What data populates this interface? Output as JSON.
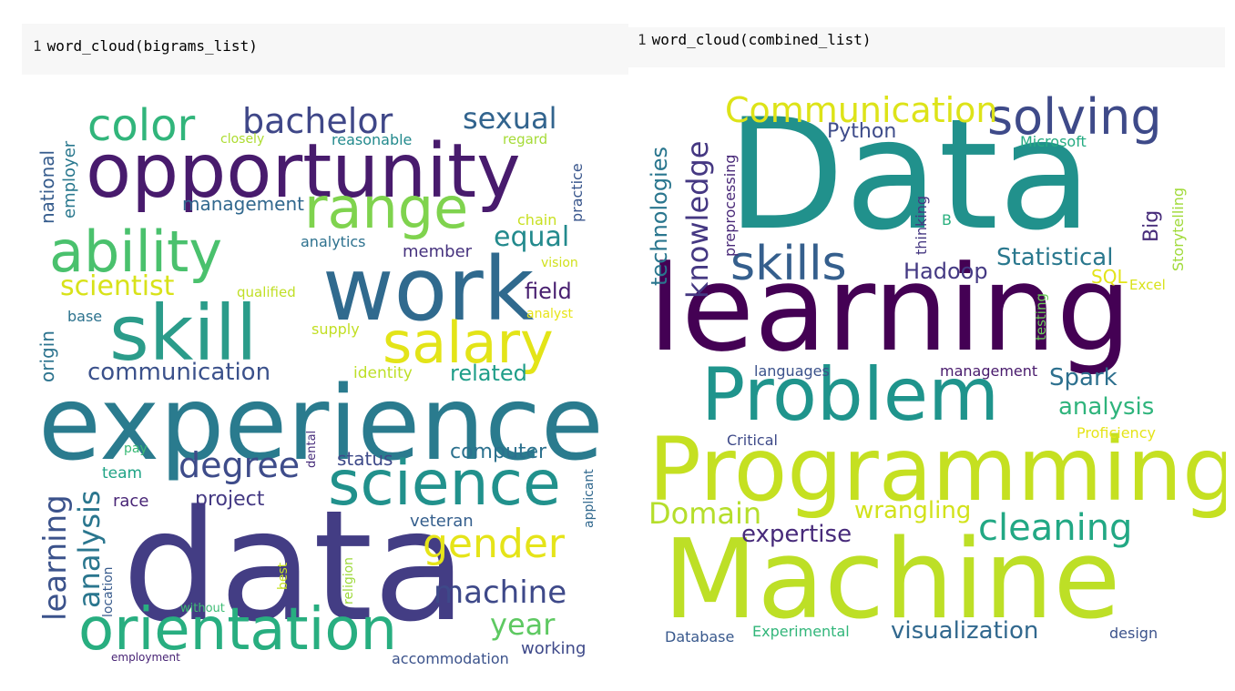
{
  "cells": [
    {
      "line": "1",
      "code": "word_cloud(bigrams_list)"
    },
    {
      "line": "1",
      "code": "word_cloud(combined_list)"
    }
  ],
  "clouds": [
    {
      "name": "bigrams",
      "words": [
        {
          "t": "data",
          "c": "#433d84"
        },
        {
          "t": "experience",
          "c": "#2a7b8e"
        },
        {
          "t": "opportunity",
          "c": "#481b6d"
        },
        {
          "t": "work",
          "c": "#306a8e"
        },
        {
          "t": "skill",
          "c": "#2b9c8a"
        },
        {
          "t": "orientation",
          "c": "#28ae80"
        },
        {
          "t": "science",
          "c": "#21918c"
        },
        {
          "t": "salary",
          "c": "#e3e418"
        },
        {
          "t": "ability",
          "c": "#4ac16d"
        },
        {
          "t": "range",
          "c": "#7fd34e"
        },
        {
          "t": "color",
          "c": "#31b57b"
        },
        {
          "t": "gender",
          "c": "#e5e419"
        },
        {
          "t": "bachelor",
          "c": "#3f4788"
        },
        {
          "t": "degree",
          "c": "#3e4c8a"
        },
        {
          "t": "learning",
          "c": "#3b528b"
        },
        {
          "t": "analysis",
          "c": "#2a768e"
        },
        {
          "t": "communication",
          "c": "#3b518b"
        },
        {
          "t": "machine",
          "c": "#3e4989"
        },
        {
          "t": "sexual",
          "c": "#32648e"
        },
        {
          "t": "equal",
          "c": "#238a8d"
        },
        {
          "t": "year",
          "c": "#5ec962"
        },
        {
          "t": "scientist",
          "c": "#d8e219"
        },
        {
          "t": "project",
          "c": "#443983"
        },
        {
          "t": "computer",
          "c": "#2c718e"
        },
        {
          "t": "related",
          "c": "#1f9e89"
        },
        {
          "t": "field",
          "c": "#481f70"
        },
        {
          "t": "national",
          "c": "#365c8d"
        },
        {
          "t": "employer",
          "c": "#2a788e"
        },
        {
          "t": "management",
          "c": "#31688e"
        },
        {
          "t": "status",
          "c": "#3e4a89"
        },
        {
          "t": "veteran",
          "c": "#355f8d"
        },
        {
          "t": "team",
          "c": "#20a486"
        },
        {
          "t": "race",
          "c": "#482576"
        },
        {
          "t": "member",
          "c": "#46327e"
        },
        {
          "t": "identity",
          "c": "#bddf26"
        },
        {
          "t": "origin",
          "c": "#2c738e"
        },
        {
          "t": "working",
          "c": "#3e4989"
        },
        {
          "t": "accommodation",
          "c": "#3b528b"
        },
        {
          "t": "practice",
          "c": "#39568c"
        },
        {
          "t": "chain",
          "c": "#c8e020"
        },
        {
          "t": "analytics",
          "c": "#2d718e"
        },
        {
          "t": "reasonable",
          "c": "#238a8d"
        },
        {
          "t": "closely",
          "c": "#addc30"
        },
        {
          "t": "regard",
          "c": "#a5db36"
        },
        {
          "t": "qualified",
          "c": "#c0df25"
        },
        {
          "t": "supply",
          "c": "#c2df23"
        },
        {
          "t": "vision",
          "c": "#d0e11c"
        },
        {
          "t": "analyst",
          "c": "#e7e419"
        },
        {
          "t": "base",
          "c": "#2c728e"
        },
        {
          "t": "pay",
          "c": "#3aba76"
        },
        {
          "t": "dental",
          "c": "#472d7b"
        },
        {
          "t": "applicant",
          "c": "#31688e"
        },
        {
          "t": "location",
          "c": "#375a8c"
        },
        {
          "t": "best",
          "c": "#c5e021"
        },
        {
          "t": "religion",
          "c": "#9dd93b"
        },
        {
          "t": "without",
          "c": "#3dbc74"
        },
        {
          "t": "employment",
          "c": "#482475"
        }
      ]
    },
    {
      "name": "combined",
      "words": [
        {
          "t": "Data",
          "c": "#21918c"
        },
        {
          "t": "learning",
          "c": "#440154"
        },
        {
          "t": "Machine",
          "c": "#bddf26"
        },
        {
          "t": "Programming",
          "c": "#c5e021"
        },
        {
          "t": "Problem",
          "c": "#1f948c"
        },
        {
          "t": "solving",
          "c": "#3e4a89"
        },
        {
          "t": "skills",
          "c": "#355f8d"
        },
        {
          "t": "Communication",
          "c": "#dde318"
        },
        {
          "t": "cleaning",
          "c": "#22a884"
        },
        {
          "t": "knowledge",
          "c": "#453882"
        },
        {
          "t": "technologies",
          "c": "#2a768e"
        },
        {
          "t": "Statistical",
          "c": "#2a788e"
        },
        {
          "t": "Domain",
          "c": "#b5de2b"
        },
        {
          "t": "visualization",
          "c": "#31688e"
        },
        {
          "t": "analysis",
          "c": "#2fb47c"
        },
        {
          "t": "Spark",
          "c": "#2d708e"
        },
        {
          "t": "expertise",
          "c": "#472a7a"
        },
        {
          "t": "Hadoop",
          "c": "#443983"
        },
        {
          "t": "wrangling",
          "c": "#d2e21b"
        },
        {
          "t": "Python",
          "c": "#3e4c8a"
        },
        {
          "t": "Big",
          "c": "#472c7a"
        },
        {
          "t": "SQL",
          "c": "#e2e418"
        },
        {
          "t": "Microsoft",
          "c": "#25ab82"
        },
        {
          "t": "Storytelling",
          "c": "#a0da39"
        },
        {
          "t": "preprocessing",
          "c": "#482878"
        },
        {
          "t": "thinking",
          "c": "#453781"
        },
        {
          "t": "B",
          "c": "#2ab07f"
        },
        {
          "t": "testing",
          "c": "#6ccd5a"
        },
        {
          "t": "Excel",
          "c": "#d8e219"
        },
        {
          "t": "languages",
          "c": "#3b528b"
        },
        {
          "t": "management",
          "c": "#481a6c"
        },
        {
          "t": "Critical",
          "c": "#3e4a89"
        },
        {
          "t": "Proficiency",
          "c": "#e5e419"
        },
        {
          "t": "Database",
          "c": "#38588c"
        },
        {
          "t": "Experimental",
          "c": "#32b67a"
        },
        {
          "t": "design",
          "c": "#3b528b"
        }
      ]
    }
  ]
}
